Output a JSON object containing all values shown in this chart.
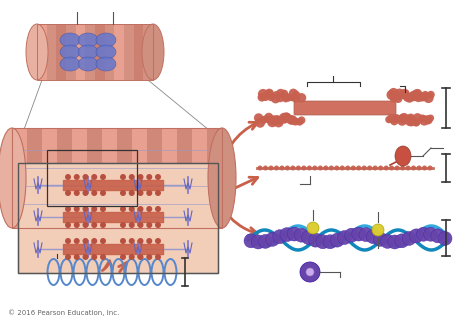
{
  "bg_color": "#ffffff",
  "copyright": "© 2016 Pearson Education, Inc.",
  "copyright_fontsize": 5,
  "figsize": [
    4.74,
    3.2
  ],
  "dpi": 100,
  "arrow_color": "#c8604a",
  "scale_bar_color": "#333333",
  "myosin_body_color": "#c8604a",
  "myosin_head_color": "#b85040",
  "actin_color": "#c86050",
  "purple_color": "#6644aa",
  "cyan_color": "#33aadd",
  "titin_coil_color": "#5588cc",
  "sarcomere_bg": "#f0c8b8",
  "zline_color": "#8888cc",
  "thin_filament_color": "#8888cc"
}
